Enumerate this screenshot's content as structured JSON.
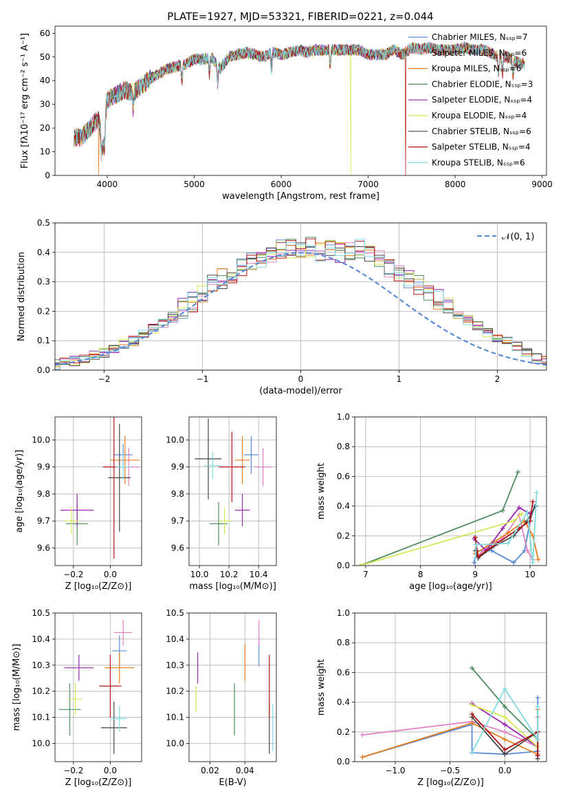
{
  "title": "PLATE=1927, MJD=53321, FIBERID=0221, z=0.044",
  "colors": {
    "chab_miles": "#5b8bd6",
    "salp_miles": "#e37fc3",
    "krou_miles": "#e67d1f",
    "chab_elodie": "#4f8b5f",
    "salp_elodie": "#9b27b0",
    "krou_elodie": "#d5e855",
    "chab_stelib": "#444444",
    "salp_stelib": "#b21515",
    "krou_stelib": "#7fdbe0"
  },
  "chart_data": [
    {
      "id": "spectrum",
      "type": "line",
      "xlabel": "wavelength [Angstrom, rest frame]",
      "ylabel": "Flux [fλ10⁻¹⁷ erg cm⁻² s⁻¹ A⁻¹]",
      "xlim": [
        3400,
        9050
      ],
      "ylim": [
        0,
        63
      ],
      "xticks": [
        4000,
        5000,
        6000,
        7000,
        8000,
        9000
      ],
      "yticks": [
        0,
        10,
        20,
        30,
        40,
        50,
        60
      ],
      "legend": "right",
      "series": [
        {
          "name": "Chabrier MILES, Nₛₛₚ=7",
          "key": "chab_miles"
        },
        {
          "name": "Salpeter MILES, Nₛₛₚ=6",
          "key": "salp_miles"
        },
        {
          "name": "Kroupa MILES, Nₛₛₚ=6",
          "key": "krou_miles"
        },
        {
          "name": "Chabrier ELODIE, Nₛₛₚ=3",
          "key": "chab_elodie"
        },
        {
          "name": "Salpeter ELODIE, Nₛₛₚ=4",
          "key": "salp_elodie"
        },
        {
          "name": "Kroupa ELODIE, Nₛₛₚ=4",
          "key": "krou_elodie"
        },
        {
          "name": "Chabrier STELIB, Nₛₛₚ=6",
          "key": "chab_stelib"
        },
        {
          "name": "Salpeter STELIB, Nₛₛₚ=4",
          "key": "salp_stelib"
        },
        {
          "name": "Kroupa STELIB, Nₛₛₚ=6",
          "key": "krou_stelib"
        }
      ],
      "x": [
        3620,
        3700,
        3800,
        3900,
        3950,
        4000,
        4100,
        4200,
        4300,
        4400,
        4500,
        4600,
        4700,
        4800,
        4900,
        5000,
        5100,
        5200,
        5300,
        5400,
        5500,
        5600,
        5700,
        5800,
        5900,
        6000,
        6100,
        6200,
        6300,
        6400,
        6500,
        6600,
        6700,
        6800,
        6900,
        7000,
        7100,
        7200,
        7300,
        7400,
        7500,
        7600,
        7700,
        7800,
        7900,
        8000,
        8100,
        8200,
        8300,
        8400,
        8500,
        8600,
        8700,
        8800
      ],
      "y": [
        16,
        16,
        20,
        24,
        12,
        32,
        34,
        36,
        35,
        38,
        41,
        43,
        45,
        46,
        47,
        49,
        49,
        50,
        45,
        50,
        51,
        52,
        51,
        50,
        52,
        51,
        52,
        53,
        52,
        53,
        53,
        53,
        53,
        53,
        53,
        51,
        51,
        51,
        53,
        51,
        54,
        53,
        54,
        53,
        53,
        53,
        54,
        53,
        53,
        52,
        50,
        50,
        48,
        47
      ],
      "drops": [
        {
          "key": "krou_miles",
          "x": 3900
        },
        {
          "key": "krou_elodie",
          "x": 6800
        },
        {
          "key": "salp_stelib",
          "x": 7430
        }
      ]
    },
    {
      "id": "residuals",
      "type": "step",
      "xlabel": "(data-model)/error",
      "ylabel": "Normed distribution",
      "xlim": [
        -2.5,
        2.5
      ],
      "ylim": [
        0,
        0.5
      ],
      "xticks": [
        -2,
        -1,
        0,
        1,
        2
      ],
      "yticks": [
        0.0,
        0.1,
        0.2,
        0.3,
        0.4,
        0.5
      ],
      "legend": "top-right",
      "gaussian_label": "𝒩(0, 1)",
      "bin_width": 0.1,
      "hist_values": [
        0.02,
        0.03,
        0.03,
        0.04,
        0.05,
        0.06,
        0.07,
        0.09,
        0.1,
        0.12,
        0.14,
        0.16,
        0.18,
        0.21,
        0.23,
        0.26,
        0.29,
        0.31,
        0.33,
        0.35,
        0.37,
        0.38,
        0.4,
        0.41,
        0.41,
        0.4,
        0.42,
        0.4,
        0.41,
        0.4,
        0.4,
        0.41,
        0.39,
        0.38,
        0.35,
        0.33,
        0.31,
        0.29,
        0.26,
        0.24,
        0.21,
        0.19,
        0.17,
        0.15,
        0.13,
        0.11,
        0.1,
        0.08,
        0.06,
        0.04,
        0.03
      ]
    },
    {
      "id": "age_vs_Z",
      "type": "errorbar",
      "xlabel": "Z [log₁₀(Z/Z⊙)]",
      "ylabel": "age  [log₁₀(age/yr)]",
      "xlim": [
        -0.3,
        0.17
      ],
      "ylim": [
        9.535,
        10.085
      ],
      "xticks": [
        -0.2,
        0.0
      ],
      "yticks": [
        9.6,
        9.7,
        9.8,
        9.9,
        10.0
      ],
      "points": [
        {
          "key": "chab_miles",
          "x": 0.07,
          "y": 9.945,
          "xe": 0.05,
          "ye": 0.04
        },
        {
          "key": "salp_miles",
          "x": 0.1,
          "y": 9.9,
          "xe": 0.06,
          "ye": 0.07
        },
        {
          "key": "krou_miles",
          "x": 0.08,
          "y": 9.925,
          "xe": 0.08,
          "ye": 0.09
        },
        {
          "key": "chab_elodie",
          "x": -0.18,
          "y": 9.69,
          "xe": 0.06,
          "ye": 0.08
        },
        {
          "key": "salp_elodie",
          "x": -0.18,
          "y": 9.74,
          "xe": 0.09,
          "ye": 0.06
        },
        {
          "key": "krou_elodie",
          "x": -0.21,
          "y": 9.7,
          "xe": 0.04,
          "ye": 0.05
        },
        {
          "key": "chab_stelib",
          "x": 0.05,
          "y": 9.86,
          "xe": 0.06,
          "ye": 0.2
        },
        {
          "key": "salp_stelib",
          "x": 0.02,
          "y": 9.9,
          "xe": 0.06,
          "ye": 0.34
        },
        {
          "key": "krou_stelib",
          "x": 0.07,
          "y": 9.9,
          "xe": 0.04,
          "ye": 0.05
        }
      ]
    },
    {
      "id": "age_vs_mass",
      "type": "errorbar",
      "xlabel": "mass [log₁₀(M/M⊙)]",
      "ylabel": "",
      "xlim": [
        9.93,
        10.52
      ],
      "ylim": [
        9.535,
        10.085
      ],
      "xticks": [
        10.0,
        10.2,
        10.4
      ],
      "yticks": [
        9.6,
        9.7,
        9.8,
        9.9,
        10.0
      ],
      "points": [
        {
          "key": "chab_miles",
          "x": 10.35,
          "y": 9.945,
          "xe": 0.05,
          "ye": 0.07
        },
        {
          "key": "salp_miles",
          "x": 10.43,
          "y": 9.9,
          "xe": 0.06,
          "ye": 0.07
        },
        {
          "key": "krou_miles",
          "x": 10.29,
          "y": 9.925,
          "xe": 0.05,
          "ye": 0.09
        },
        {
          "key": "chab_elodie",
          "x": 10.13,
          "y": 9.69,
          "xe": 0.06,
          "ye": 0.08
        },
        {
          "key": "salp_elodie",
          "x": 10.29,
          "y": 9.74,
          "xe": 0.05,
          "ye": 0.06
        },
        {
          "key": "krou_elodie",
          "x": 10.17,
          "y": 9.7,
          "xe": 0.04,
          "ye": 0.05
        },
        {
          "key": "chab_stelib",
          "x": 10.06,
          "y": 9.93,
          "xe": 0.09,
          "ye": 0.15
        },
        {
          "key": "salp_stelib",
          "x": 10.22,
          "y": 9.9,
          "xe": 0.09,
          "ye": 0.13
        },
        {
          "key": "krou_stelib",
          "x": 10.09,
          "y": 9.905,
          "xe": 0.06,
          "ye": 0.05
        }
      ]
    },
    {
      "id": "mass_weight_vs_age",
      "type": "line",
      "xlabel": "age  [log₁₀(age/yr)]",
      "ylabel": "mass weight",
      "xlim": [
        6.8,
        10.3
      ],
      "ylim": [
        0,
        1
      ],
      "xticks": [
        7,
        8,
        9,
        10
      ],
      "yticks": [
        0.0,
        0.2,
        0.4,
        0.6,
        0.8,
        1.0
      ],
      "series": [
        {
          "key": "chab_miles",
          "x": [
            8.98,
            9.02,
            9.3,
            9.7,
            9.9,
            10.0,
            10.08
          ],
          "y": [
            0.02,
            0.1,
            0.1,
            0.02,
            0.1,
            0.3,
            0.4
          ]
        },
        {
          "key": "salp_miles",
          "x": [
            9.0,
            9.2,
            9.5,
            9.8,
            9.95,
            10.05
          ],
          "y": [
            0.05,
            0.12,
            0.18,
            0.34,
            0.1,
            0.04
          ]
        },
        {
          "key": "krou_miles",
          "x": [
            9.0,
            9.3,
            9.6,
            9.9,
            10.05,
            10.15
          ],
          "y": [
            0.08,
            0.15,
            0.22,
            0.3,
            0.2,
            0.04
          ]
        },
        {
          "key": "chab_elodie",
          "x": [
            6.9,
            9.5,
            9.78
          ],
          "y": [
            0.0,
            0.37,
            0.63
          ]
        },
        {
          "key": "salp_elodie",
          "x": [
            8.98,
            9.2,
            9.5,
            9.8,
            10.0
          ],
          "y": [
            0.18,
            0.1,
            0.25,
            0.39,
            0.35
          ]
        },
        {
          "key": "krou_elodie",
          "x": [
            6.9,
            9.7,
            9.85
          ],
          "y": [
            0.0,
            0.3,
            0.35
          ]
        },
        {
          "key": "chab_stelib",
          "x": [
            9.0,
            9.05,
            9.3,
            9.7,
            9.95,
            10.1
          ],
          "y": [
            0.1,
            0.05,
            0.12,
            0.2,
            0.3,
            0.4
          ]
        },
        {
          "key": "salp_stelib",
          "x": [
            9.0,
            9.05,
            9.4,
            9.8,
            10.0,
            10.05
          ],
          "y": [
            0.19,
            0.06,
            0.15,
            0.25,
            0.3,
            0.43
          ]
        },
        {
          "key": "krou_stelib",
          "x": [
            9.0,
            9.02,
            9.6,
            9.95,
            10.05,
            10.12
          ],
          "y": [
            0.05,
            0.14,
            0.15,
            0.36,
            0.02,
            0.49
          ]
        }
      ]
    },
    {
      "id": "mass_vs_Z",
      "type": "errorbar",
      "xlabel": "Z [log₁₀(Z/Z⊙)]",
      "ylabel": "mass [log₁₀(M/M⊙)]",
      "xlim": [
        -0.3,
        0.17
      ],
      "ylim": [
        9.93,
        10.5
      ],
      "xticks": [
        -0.2,
        0.0
      ],
      "yticks": [
        10.0,
        10.1,
        10.2,
        10.3,
        10.4,
        10.5
      ],
      "points": [
        {
          "key": "chab_miles",
          "x": 0.05,
          "y": 10.355,
          "xe": 0.04,
          "ye": 0.06
        },
        {
          "key": "salp_miles",
          "x": 0.07,
          "y": 10.425,
          "xe": 0.05,
          "ye": 0.05
        },
        {
          "key": "krou_miles",
          "x": 0.05,
          "y": 10.29,
          "xe": 0.08,
          "ye": 0.06
        },
        {
          "key": "chab_elodie",
          "x": -0.22,
          "y": 10.13,
          "xe": 0.06,
          "ye": 0.1
        },
        {
          "key": "salp_elodie",
          "x": -0.17,
          "y": 10.29,
          "xe": 0.08,
          "ye": 0.05
        },
        {
          "key": "krou_elodie",
          "x": -0.19,
          "y": 10.17,
          "xe": 0.04,
          "ye": 0.06
        },
        {
          "key": "chab_stelib",
          "x": 0.02,
          "y": 10.06,
          "xe": 0.07,
          "ye": 0.1
        },
        {
          "key": "salp_stelib",
          "x": 0.0,
          "y": 10.22,
          "xe": 0.06,
          "ye": 0.12
        },
        {
          "key": "krou_stelib",
          "x": 0.05,
          "y": 10.095,
          "xe": 0.04,
          "ye": 0.05
        }
      ]
    },
    {
      "id": "mass_vs_ebv",
      "type": "errorbar",
      "xlabel": "E(B-V)",
      "ylabel": "",
      "xlim": [
        0.008,
        0.058
      ],
      "ylim": [
        9.93,
        10.5
      ],
      "xticks": [
        0.02,
        0.04
      ],
      "yticks": [
        10.0,
        10.1,
        10.2,
        10.3,
        10.4,
        10.5
      ],
      "points": [
        {
          "key": "chab_miles",
          "x": 0.048,
          "y": 10.355,
          "xe": 0,
          "ye": 0.06
        },
        {
          "key": "salp_miles",
          "x": 0.048,
          "y": 10.425,
          "xe": 0,
          "ye": 0.05
        },
        {
          "key": "krou_miles",
          "x": 0.04,
          "y": 10.31,
          "xe": 0,
          "ye": 0.07
        },
        {
          "key": "chab_elodie",
          "x": 0.034,
          "y": 10.13,
          "xe": 0,
          "ye": 0.1
        },
        {
          "key": "salp_elodie",
          "x": 0.013,
          "y": 10.29,
          "xe": 0,
          "ye": 0.06
        },
        {
          "key": "krou_elodie",
          "x": 0.012,
          "y": 10.17,
          "xe": 0,
          "ye": 0.05
        },
        {
          "key": "chab_stelib",
          "x": 0.054,
          "y": 10.06,
          "xe": 0,
          "ye": 0.1
        },
        {
          "key": "salp_stelib",
          "x": 0.054,
          "y": 10.22,
          "xe": 0,
          "ye": 0.12
        },
        {
          "key": "krou_stelib",
          "x": 0.056,
          "y": 10.06,
          "xe": 0,
          "ye": 0.09
        }
      ]
    },
    {
      "id": "mass_weight_vs_Z",
      "type": "line",
      "xlabel": "Z [log₁₀(Z/Z⊙)]",
      "ylabel": "mass weight",
      "xlim": [
        -1.37,
        0.38
      ],
      "ylim": [
        0,
        1
      ],
      "xticks": [
        -1.0,
        -0.5,
        0.0
      ],
      "yticks": [
        0.0,
        0.2,
        0.4,
        0.6,
        0.8,
        1.0
      ],
      "series": [
        {
          "key": "chab_miles",
          "x": [
            -1.3,
            -0.3,
            -0.3,
            0.0,
            0.3,
            0.3
          ],
          "y": [
            0.03,
            0.25,
            0.06,
            0.05,
            0.07,
            0.43
          ]
        },
        {
          "key": "salp_miles",
          "x": [
            -1.3,
            -0.3,
            0.0,
            0.3,
            0.3
          ],
          "y": [
            0.18,
            0.27,
            0.2,
            0.1,
            0.3
          ]
        },
        {
          "key": "krou_miles",
          "x": [
            -1.3,
            -0.3,
            0.0,
            0.3,
            0.3
          ],
          "y": [
            0.03,
            0.26,
            0.15,
            0.05,
            0.35
          ]
        },
        {
          "key": "chab_elodie",
          "x": [
            -0.3,
            0.0,
            0.3
          ],
          "y": [
            0.63,
            0.37,
            0.15
          ]
        },
        {
          "key": "salp_elodie",
          "x": [
            -0.3,
            0.0,
            0.3,
            0.3
          ],
          "y": [
            0.39,
            0.25,
            0.1,
            0.04
          ]
        },
        {
          "key": "krou_elodie",
          "x": [
            -0.3,
            0.0,
            0.3
          ],
          "y": [
            0.38,
            0.3,
            0.1
          ]
        },
        {
          "key": "chab_stelib",
          "x": [
            -0.3,
            0.0,
            0.3,
            0.3
          ],
          "y": [
            0.3,
            0.05,
            0.2,
            0.02
          ]
        },
        {
          "key": "salp_stelib",
          "x": [
            -0.3,
            0.0,
            0.3,
            0.3
          ],
          "y": [
            0.32,
            0.08,
            0.2,
            0.04
          ]
        },
        {
          "key": "krou_stelib",
          "x": [
            -0.3,
            0.0,
            0.3,
            0.3
          ],
          "y": [
            0.06,
            0.49,
            0.15,
            0.37
          ]
        }
      ]
    }
  ]
}
